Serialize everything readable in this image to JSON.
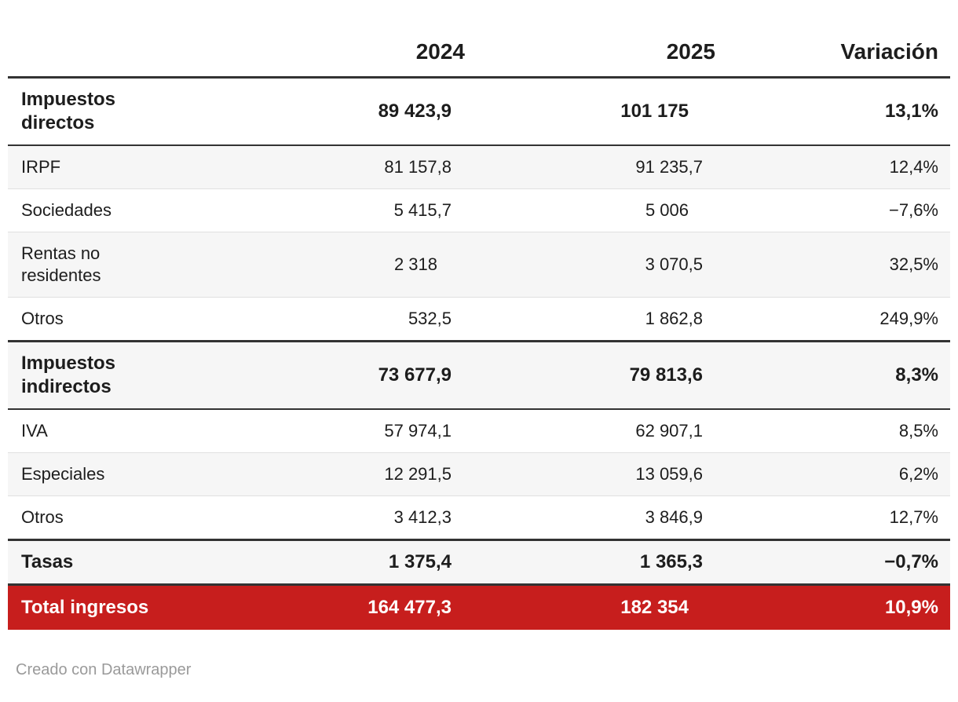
{
  "table": {
    "columns": {
      "label": "",
      "y2024": "2024",
      "y2025": "2025",
      "variation": "Variación"
    },
    "rows": [
      {
        "label": "Impuestos directos",
        "y2024": "89 423,9",
        "y2025": "101 175",
        "variation": "13,1%"
      },
      {
        "label": "IRPF",
        "y2024": "81 157,8",
        "y2025": "91 235,7",
        "variation": "12,4%"
      },
      {
        "label": "Sociedades",
        "y2024": "5 415,7",
        "y2025": "5 006",
        "variation": "−7,6%"
      },
      {
        "label": "Rentas no residentes",
        "y2024": "2 318",
        "y2025": "3 070,5",
        "variation": "32,5%"
      },
      {
        "label": "Otros",
        "y2024": "532,5",
        "y2025": "1 862,8",
        "variation": "249,9%"
      },
      {
        "label": "Impuestos indirectos",
        "y2024": "73 677,9",
        "y2025": "79 813,6",
        "variation": "8,3%"
      },
      {
        "label": "IVA",
        "y2024": "57 974,1",
        "y2025": "62 907,1",
        "variation": "8,5%"
      },
      {
        "label": "Especiales",
        "y2024": "12 291,5",
        "y2025": "13 059,6",
        "variation": "6,2%"
      },
      {
        "label": "Otros",
        "y2024": "3 412,3",
        "y2025": "3 846,9",
        "variation": "12,7%"
      },
      {
        "label": "Tasas",
        "y2024": "1 375,4",
        "y2025": "1 365,3",
        "variation": "−0,7%"
      },
      {
        "label": "Total ingresos",
        "y2024": "164 477,3",
        "y2025": "182 354",
        "variation": "10,9%"
      }
    ]
  },
  "footer": {
    "credit": "Creado con Datawrapper"
  },
  "colors": {
    "total_row_red": "#c71e1d",
    "stripe_gray": "#f6f6f6",
    "dark_border": "#333333",
    "light_border": "#e0e0e0",
    "text": "#1d1d1d",
    "credit_text": "#9a9a9a"
  },
  "chart_data": {
    "type": "table",
    "columns": [
      "",
      "2024",
      "2025",
      "Variación"
    ],
    "rows": [
      {
        "label": "Impuestos directos",
        "2024": 89423.9,
        "2025": 101175,
        "variacion_pct": 13.1,
        "emphasis": "section"
      },
      {
        "label": "IRPF",
        "2024": 81157.8,
        "2025": 91235.7,
        "variacion_pct": 12.4,
        "emphasis": "normal"
      },
      {
        "label": "Sociedades",
        "2024": 5415.7,
        "2025": 5006,
        "variacion_pct": -7.6,
        "emphasis": "normal"
      },
      {
        "label": "Rentas no residentes",
        "2024": 2318,
        "2025": 3070.5,
        "variacion_pct": 32.5,
        "emphasis": "normal"
      },
      {
        "label": "Otros",
        "2024": 532.5,
        "2025": 1862.8,
        "variacion_pct": 249.9,
        "emphasis": "normal"
      },
      {
        "label": "Impuestos indirectos",
        "2024": 73677.9,
        "2025": 79813.6,
        "variacion_pct": 8.3,
        "emphasis": "section"
      },
      {
        "label": "IVA",
        "2024": 57974.1,
        "2025": 62907.1,
        "variacion_pct": 8.5,
        "emphasis": "normal"
      },
      {
        "label": "Especiales",
        "2024": 12291.5,
        "2025": 13059.6,
        "variacion_pct": 6.2,
        "emphasis": "normal"
      },
      {
        "label": "Otros",
        "2024": 3412.3,
        "2025": 3846.9,
        "variacion_pct": 12.7,
        "emphasis": "normal"
      },
      {
        "label": "Tasas",
        "2024": 1375.4,
        "2025": 1365.3,
        "variacion_pct": -0.7,
        "emphasis": "section"
      },
      {
        "label": "Total ingresos",
        "2024": 164477.3,
        "2025": 182354,
        "variacion_pct": 10.9,
        "emphasis": "total"
      }
    ],
    "number_format": "es-ES (space thousands, comma decimals)",
    "layout": "zebra-striped table, bold section rows, red highlighted total row"
  }
}
